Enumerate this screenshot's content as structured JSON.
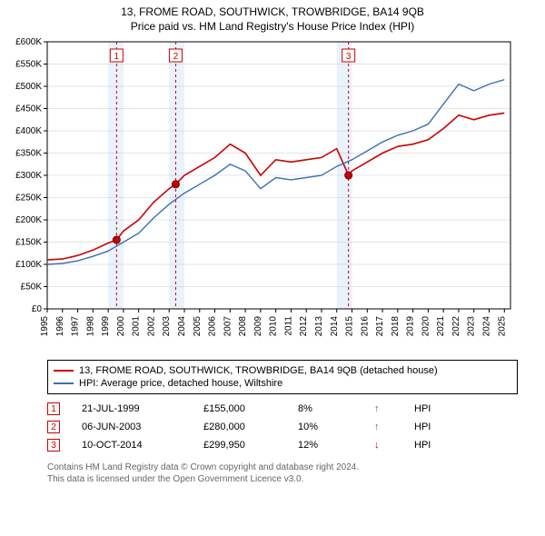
{
  "title": "13, FROME ROAD, SOUTHWICK, TROWBRIDGE, BA14 9QB",
  "subtitle": "Price paid vs. HM Land Registry's House Price Index (HPI)",
  "chart": {
    "type": "line",
    "xlim": [
      1995,
      2025.4
    ],
    "ylim": [
      0,
      600000
    ],
    "ytick_step": 50000,
    "ytick_labels": [
      "£0",
      "£50K",
      "£100K",
      "£150K",
      "£200K",
      "£250K",
      "£300K",
      "£350K",
      "£400K",
      "£450K",
      "£500K",
      "£550K",
      "£600K"
    ],
    "xtick_step": 1,
    "xtick_labels": [
      "1995",
      "1996",
      "1997",
      "1998",
      "1999",
      "2000",
      "2001",
      "2002",
      "2003",
      "2004",
      "2005",
      "2006",
      "2007",
      "2008",
      "2009",
      "2010",
      "2011",
      "2012",
      "2013",
      "2014",
      "2015",
      "2016",
      "2017",
      "2018",
      "2019",
      "2020",
      "2021",
      "2022",
      "2023",
      "2024",
      "2025"
    ],
    "grid_shade_years": [
      1999,
      2003,
      2014
    ],
    "shade_color": "#eaf2fb",
    "grid_color": "#cccccc",
    "axis_color": "#000000",
    "background_color": "#ffffff",
    "series": [
      {
        "name": "subject",
        "label": "13, FROME ROAD, SOUTHWICK, TROWBRIDGE, BA14 9QB (detached house)",
        "color": "#cc0000",
        "width": 1.6,
        "x": [
          1995,
          1996,
          1997,
          1998,
          1999,
          1999.55,
          2000,
          2001,
          2002,
          2003,
          2003.43,
          2004,
          2005,
          2006,
          2007,
          2008,
          2009,
          2010,
          2011,
          2012,
          2013,
          2014,
          2014.77,
          2015,
          2016,
          2017,
          2018,
          2019,
          2020,
          2021,
          2022,
          2023,
          2024,
          2025
        ],
        "y": [
          110000,
          112000,
          120000,
          132000,
          148000,
          155000,
          175000,
          200000,
          240000,
          270000,
          280000,
          300000,
          320000,
          340000,
          370000,
          350000,
          300000,
          335000,
          330000,
          335000,
          340000,
          360000,
          299950,
          310000,
          330000,
          350000,
          365000,
          370000,
          380000,
          405000,
          435000,
          425000,
          435000,
          440000
        ]
      },
      {
        "name": "hpi",
        "label": "HPI: Average price, detached house, Wiltshire",
        "color": "#3a6fb7",
        "width": 1.4,
        "x": [
          1995,
          1996,
          1997,
          1998,
          1999,
          2000,
          2001,
          2002,
          2003,
          2004,
          2005,
          2006,
          2007,
          2008,
          2009,
          2010,
          2011,
          2012,
          2013,
          2014,
          2015,
          2016,
          2017,
          2018,
          2019,
          2020,
          2021,
          2022,
          2023,
          2024,
          2025
        ],
        "y": [
          100000,
          102000,
          108000,
          118000,
          130000,
          150000,
          170000,
          205000,
          235000,
          260000,
          280000,
          300000,
          325000,
          310000,
          270000,
          295000,
          290000,
          295000,
          300000,
          320000,
          335000,
          355000,
          375000,
          390000,
          400000,
          415000,
          460000,
          505000,
          490000,
          505000,
          515000
        ]
      }
    ],
    "markers": [
      {
        "n": "1",
        "x": 1999.55,
        "y": 155000,
        "dash_color": "#cc0000"
      },
      {
        "n": "2",
        "x": 2003.43,
        "y": 280000,
        "dash_color": "#cc0000"
      },
      {
        "n": "3",
        "x": 2014.77,
        "y": 299950,
        "dash_color": "#cc0000"
      }
    ],
    "marker_box_fill": "#ffffff",
    "marker_box_stroke": "#cc0000",
    "marker_dot_fill": "#cc0000",
    "marker_dot_stroke": "#660000",
    "tick_fontsize": 10
  },
  "legend": [
    {
      "color": "#cc0000",
      "label": "13, FROME ROAD, SOUTHWICK, TROWBRIDGE, BA14 9QB (detached house)"
    },
    {
      "color": "#3a6fb7",
      "label": "HPI: Average price, detached house, Wiltshire"
    }
  ],
  "transactions": [
    {
      "n": "1",
      "date": "21-JUL-1999",
      "price": "£155,000",
      "delta": "8%",
      "arrow": "↑",
      "arrow_color": "#2a8a2a",
      "ref": "HPI"
    },
    {
      "n": "2",
      "date": "06-JUN-2003",
      "price": "£280,000",
      "delta": "10%",
      "arrow": "↑",
      "arrow_color": "#2a8a2a",
      "ref": "HPI"
    },
    {
      "n": "3",
      "date": "10-OCT-2014",
      "price": "£299,950",
      "delta": "12%",
      "arrow": "↓",
      "arrow_color": "#cc0000",
      "ref": "HPI"
    }
  ],
  "footer_line1": "Contains HM Land Registry data © Crown copyright and database right 2024.",
  "footer_line2": "This data is licensed under the Open Government Licence v3.0."
}
